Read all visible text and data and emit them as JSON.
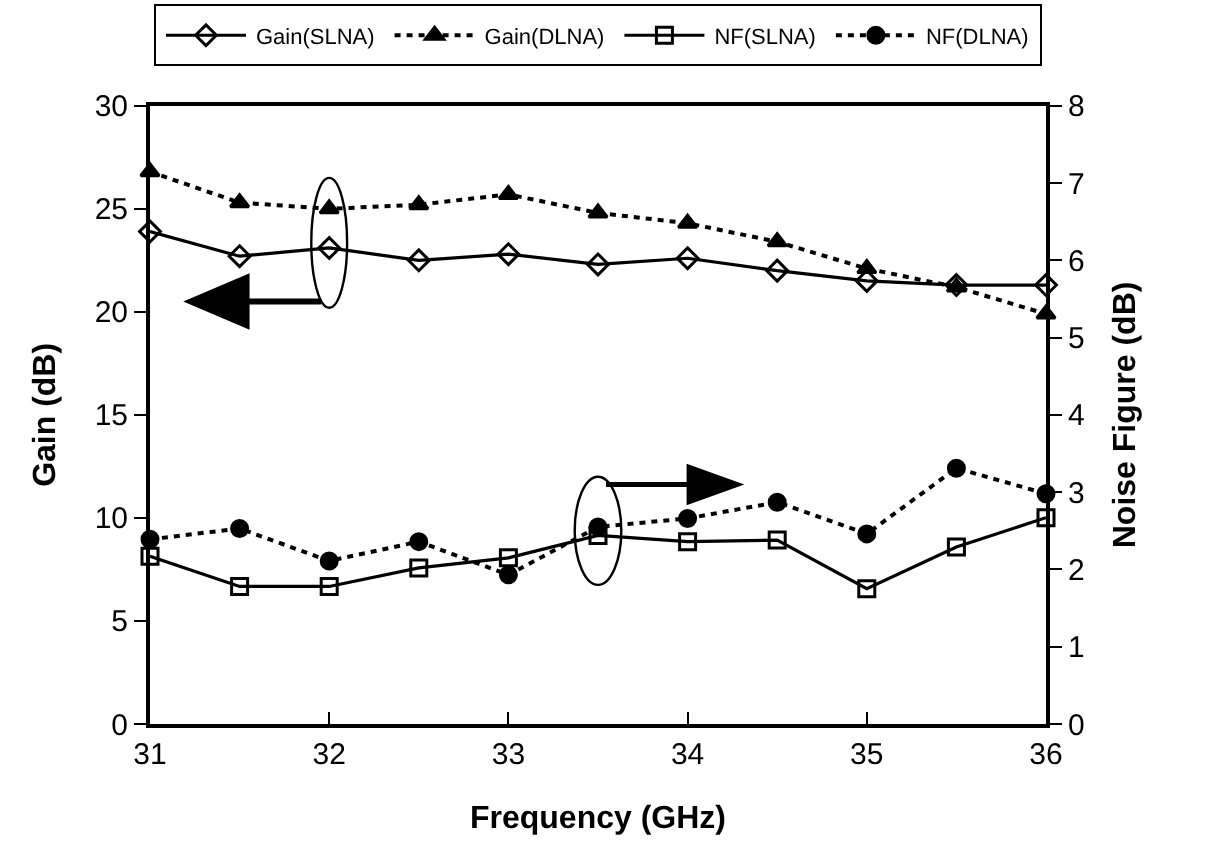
{
  "chart_data": {
    "type": "line",
    "xlabel": "Frequency (GHz)",
    "ylabel": "Gain (dB)",
    "y2label": "Noise Figure (dB)",
    "x": [
      31,
      31.5,
      32,
      32.5,
      33,
      33.5,
      34,
      34.5,
      35,
      35.5,
      36
    ],
    "xlim": [
      31,
      36
    ],
    "xticks": [
      31,
      32,
      33,
      34,
      35,
      36
    ],
    "ylim": [
      0,
      30
    ],
    "yticks": [
      0,
      5,
      10,
      15,
      20,
      25,
      30
    ],
    "y2lim": [
      0,
      8
    ],
    "y2ticks": [
      0,
      1,
      2,
      3,
      4,
      5,
      6,
      7,
      8
    ],
    "legend": "top",
    "series": [
      {
        "name": "Gain(SLNA)",
        "color": "#000000",
        "marker": "diamond-open",
        "line_style": "solid",
        "values": [
          23.9,
          22.7,
          23.1,
          22.5,
          22.8,
          22.3,
          22.6,
          22.0,
          21.5,
          21.3,
          21.3
        ]
      },
      {
        "name": "Gain(DLNA)",
        "color": "#000000",
        "marker": "triangle",
        "line_style": "dotted",
        "values": [
          26.8,
          25.3,
          25.0,
          25.2,
          25.7,
          24.8,
          24.3,
          23.4,
          22.1,
          21.2,
          19.9
        ]
      },
      {
        "name": "NF(SLNA)",
        "color": "#000000",
        "marker": "square-open",
        "line_style": "solid",
        "axis": "y2",
        "values": [
          2.17,
          1.78,
          1.78,
          2.02,
          2.15,
          2.44,
          2.36,
          2.38,
          1.75,
          2.29,
          2.67
        ]
      },
      {
        "name": "NF(DLNA)",
        "color": "#000000",
        "marker": "circle",
        "line_style": "dotted",
        "axis": "y2",
        "values": [
          2.39,
          2.53,
          2.11,
          2.36,
          1.93,
          2.55,
          2.66,
          2.87,
          2.46,
          3.31,
          2.98
        ]
      }
    ]
  }
}
